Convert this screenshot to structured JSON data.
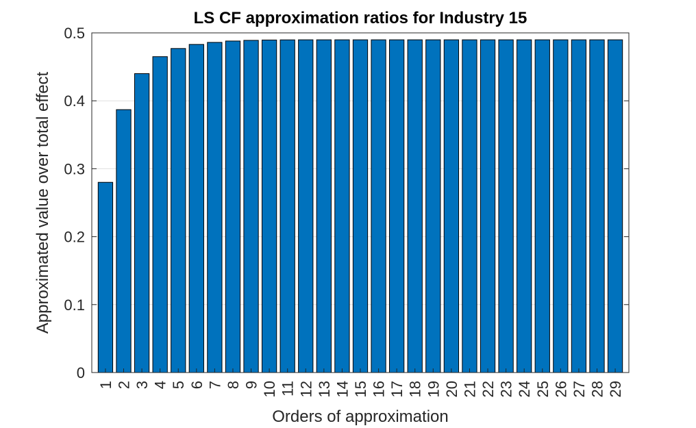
{
  "chart_data": {
    "type": "bar",
    "title": "LS CF approximation ratios for Industry 15",
    "xlabel": "Orders of approximation",
    "ylabel": "Approximated value over total effect",
    "categories": [
      "1",
      "2",
      "3",
      "4",
      "5",
      "6",
      "7",
      "8",
      "9",
      "10",
      "11",
      "12",
      "13",
      "14",
      "15",
      "16",
      "17",
      "18",
      "19",
      "20",
      "21",
      "22",
      "23",
      "24",
      "25",
      "26",
      "27",
      "28",
      "29"
    ],
    "values": [
      0.28,
      0.387,
      0.44,
      0.465,
      0.477,
      0.483,
      0.486,
      0.488,
      0.489,
      0.4895,
      0.4897,
      0.4898,
      0.4898,
      0.4898,
      0.4898,
      0.4898,
      0.4898,
      0.4898,
      0.4898,
      0.4898,
      0.4898,
      0.4898,
      0.4898,
      0.4898,
      0.4898,
      0.4898,
      0.4898,
      0.4898,
      0.4898
    ],
    "ylim": [
      0,
      0.5
    ],
    "yticks": [
      0,
      0.1,
      0.2,
      0.3,
      0.4,
      0.5
    ],
    "ytick_labels": [
      "0",
      "0.1",
      "0.2",
      "0.3",
      "0.4",
      "0.5"
    ],
    "grid": "horizontal",
    "bar_color": "#0072BD",
    "bar_edge_color": "#000000"
  }
}
